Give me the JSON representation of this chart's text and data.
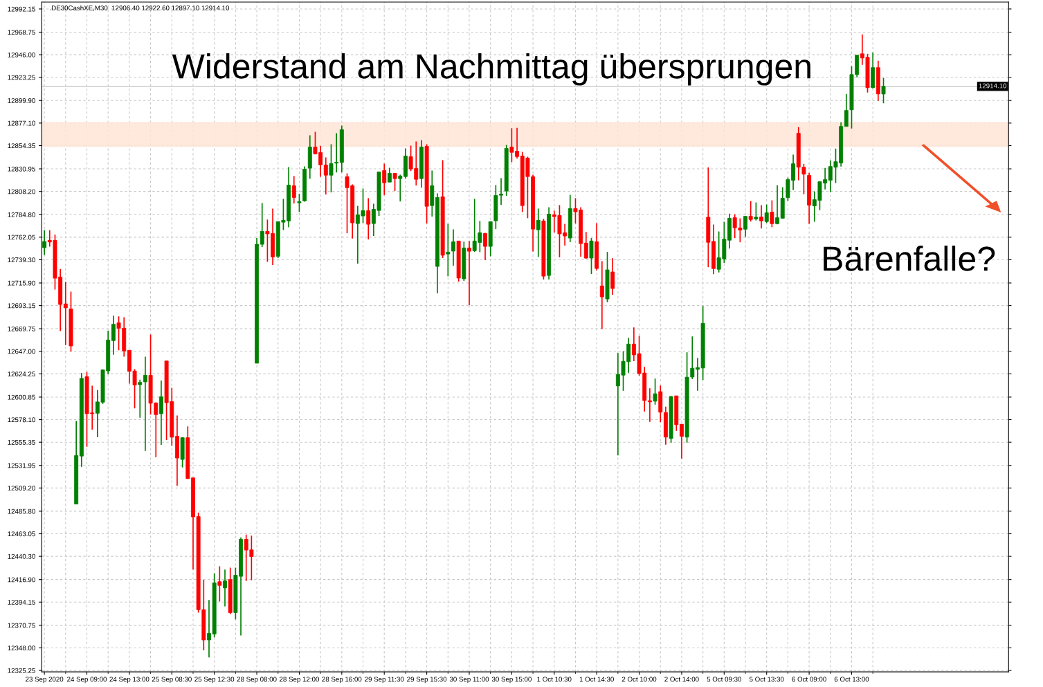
{
  "chart_data": {
    "type": "candlestick",
    "title": ".DE30CashXE,M30  12906.40 12922.60 12897.10 12914.10",
    "annotations": [
      "Widerstand am Nachmittag übersprungen",
      "Bärenfalle?"
    ],
    "categories": [
      "23 Sep 2020",
      null,
      null,
      null,
      null,
      null,
      null,
      null,
      "24 Sep 09:00",
      null,
      null,
      null,
      null,
      null,
      null,
      null,
      "24 Sep 13:00",
      null,
      null,
      null,
      null,
      null,
      null,
      null,
      "25 Sep 08:30",
      null,
      null,
      null,
      null,
      null,
      null,
      null,
      "25 Sep 12:30",
      null,
      null,
      null,
      null,
      null,
      null,
      null,
      "28 Sep 08:00",
      null,
      null,
      null,
      null,
      null,
      null,
      null,
      "28 Sep 12:00",
      null,
      null,
      null,
      null,
      null,
      null,
      null,
      "28 Sep 16:00",
      null,
      null,
      null,
      null,
      null,
      null,
      null,
      "29 Sep 11:30",
      null,
      null,
      null,
      null,
      null,
      null,
      null,
      "29 Sep 15:30",
      null,
      null,
      null,
      null,
      null,
      null,
      null,
      "30 Sep 11:00",
      null,
      null,
      null,
      null,
      null,
      null,
      null,
      "30 Sep 15:00",
      null,
      null,
      null,
      null,
      null,
      null,
      null,
      "1 Oct 10:30",
      null,
      null,
      null,
      null,
      null,
      null,
      null,
      "1 Oct 14:30",
      null,
      null,
      null,
      null,
      null,
      null,
      null,
      "2 Oct 10:00",
      null,
      null,
      null,
      null,
      null,
      null,
      null,
      "2 Oct 14:00",
      null,
      null,
      null,
      null,
      null,
      null,
      null,
      "5 Oct 09:30",
      null,
      null,
      null,
      null,
      null,
      null,
      null,
      "5 Oct 13:30",
      null,
      null,
      null,
      null,
      null,
      null,
      null,
      "6 Oct 09:00",
      null,
      null,
      null,
      null,
      null,
      null,
      null,
      "6 Oct 13:00",
      null,
      null,
      null,
      null,
      null,
      null
    ],
    "colors": [
      "#008000",
      "#ff0000",
      "#ff0000",
      "#ff0000",
      "#ff0000",
      "#ff0000",
      "#008000",
      "#008000",
      "#ff0000",
      "#ff0000",
      "#008000",
      "#008000",
      "#008000",
      "#008000",
      "#ff0000",
      "#ff0000",
      "#ff0000",
      "#ff0000",
      "#008000",
      "#008000",
      "#ff0000",
      "#ff0000",
      "#008000",
      "#ff0000",
      "#ff0000",
      "#ff0000",
      "#008000",
      "#ff0000",
      "#ff0000",
      "#ff0000",
      "#ff0000",
      "#008000",
      "#008000",
      "#ff0000",
      "#008000",
      "#ff0000",
      "#008000",
      "#008000",
      "#ff0000",
      "#ff0000",
      "#008000",
      "#008000",
      "#ff0000",
      "#ff0000",
      "#008000",
      "#008000",
      "#008000",
      "#ff0000",
      "#008000",
      "#008000",
      "#008000",
      "#ff0000",
      "#ff0000",
      "#ff0000",
      "#008000",
      "#008000",
      "#008000",
      "#ff0000",
      "#ff0000",
      "#008000",
      "#008000",
      "#ff0000",
      "#008000",
      "#008000",
      "#ff0000",
      "#008000",
      "#ff0000",
      "#008000",
      "#008000",
      "#ff0000",
      "#ff0000",
      "#008000",
      "#ff0000",
      "#008000",
      "#008000",
      "#ff0000",
      "#008000",
      "#008000",
      "#ff0000",
      "#008000",
      "#ff0000",
      "#008000",
      "#008000",
      "#ff0000",
      "#008000",
      "#008000",
      "#008000",
      "#008000",
      "#ff0000",
      "#ff0000",
      "#ff0000",
      "#ff0000",
      "#ff0000",
      "#008000",
      "#ff0000",
      "#008000",
      "#ff0000",
      "#ff0000",
      "#ff0000",
      "#008000",
      "#ff0000",
      "#ff0000",
      "#ff0000",
      "#008000",
      "#ff0000",
      "#ff0000",
      "#008000",
      "#ff0000",
      "#008000",
      "#008000",
      "#008000",
      "#ff0000",
      "#ff0000",
      "#ff0000",
      "#ff0000",
      "#008000",
      "#ff0000",
      "#ff0000",
      "#008000",
      "#ff0000",
      "#ff0000",
      "#008000",
      "#008000",
      "#008000",
      "#008000",
      "#ff0000",
      "#ff0000",
      "#008000",
      "#008000",
      "#008000",
      "#ff0000",
      "#ff0000",
      "#008000",
      "#ff0000",
      "#008000",
      "#ff0000",
      "#008000",
      "#ff0000",
      "#008000",
      "#008000",
      "#008000",
      "#008000",
      "#ff0000",
      "#ff0000",
      "#ff0000",
      "#008000",
      "#008000",
      "#008000",
      "#008000",
      "#008000",
      "#008000",
      "#008000",
      "#008000",
      "#008000",
      "#ff0000",
      "#ff0000",
      "#008000",
      "#ff0000",
      "#008000"
    ],
    "ohlc": [
      [
        12751.5,
        12769.1,
        12744.1,
        12757.7
      ],
      [
        12758.9,
        12769.1,
        12752.6,
        12757.2
      ],
      [
        12758.9,
        12764.8,
        12709.3,
        12720.7
      ],
      [
        12721.9,
        12730.1,
        12667.5,
        12694.2
      ],
      [
        12694.8,
        12717.0,
        12653.3,
        12690.8
      ],
      [
        12689.7,
        12707.1,
        12646.7,
        12652.4
      ],
      [
        12493.0,
        12576.7,
        12493.0,
        12541.9
      ],
      [
        12541.4,
        12625.3,
        12530.5,
        12619.7
      ],
      [
        12621.4,
        12626.2,
        12550.7,
        12584.1
      ],
      [
        12584.9,
        12612.3,
        12568.1,
        12584.1
      ],
      [
        12584.6,
        12608.0,
        12560.4,
        12596.0
      ],
      [
        12595.7,
        12628.8,
        12594.0,
        12628.2
      ],
      [
        12627.3,
        12667.8,
        12623.9,
        12658.4
      ],
      [
        12657.8,
        12682.9,
        12643.6,
        12674.3
      ],
      [
        12675.7,
        12682.3,
        12648.1,
        12670.3
      ],
      [
        12670.3,
        12681.4,
        12641.6,
        12647.3
      ],
      [
        12648.1,
        12648.1,
        12614.5,
        12626.8
      ],
      [
        12627.1,
        12629.0,
        12589.5,
        12613.1
      ],
      [
        12613.4,
        12618.5,
        12580.1,
        12615.7
      ],
      [
        12616.2,
        12641.6,
        12546.5,
        12622.8
      ],
      [
        12622.8,
        12664.0,
        12583.2,
        12594.6
      ],
      [
        12594.9,
        12595.5,
        12540.2,
        12583.2
      ],
      [
        12584.1,
        12617.6,
        12552.7,
        12601.1
      ],
      [
        12637.3,
        12637.3,
        12557.6,
        12595.2
      ],
      [
        12596.3,
        12610.3,
        12551.9,
        12560.4
      ],
      [
        12561.3,
        12582.4,
        12511.5,
        12539.4
      ],
      [
        12538.0,
        12560.4,
        12529.9,
        12559.9
      ],
      [
        12559.9,
        12571.3,
        12518.6,
        12518.6
      ],
      [
        12519.4,
        12519.4,
        12426.9,
        12480.1
      ],
      [
        12480.4,
        12484.4,
        12383.6,
        12386.5
      ],
      [
        12386.5,
        12416.7,
        12345.5,
        12356.0
      ],
      [
        12356.0,
        12396.2,
        12338.4,
        12362.6
      ],
      [
        12362.0,
        12423.2,
        12358.6,
        12413.5
      ],
      [
        12414.7,
        12430.3,
        12394.7,
        12411.0
      ],
      [
        12408.4,
        12426.9,
        12389.9,
        12415.5
      ],
      [
        12416.9,
        12428.9,
        12381.9,
        12383.6
      ],
      [
        12383.6,
        12428.9,
        12376.8,
        12421.2
      ],
      [
        12420.1,
        12459.4,
        12360.6,
        12457.4
      ],
      [
        12457.4,
        12462.2,
        12415.5,
        12446.6
      ],
      [
        12446.8,
        12461.1,
        12416.1,
        12440.0
      ],
      [
        12635.0,
        12761.2,
        12635.0,
        12754.9
      ],
      [
        12754.9,
        12796.5,
        12752.1,
        12767.9
      ],
      [
        12767.9,
        12779.8,
        12737.2,
        12765.4
      ],
      [
        12765.8,
        12790.9,
        12734.0,
        12742.1
      ],
      [
        12742.8,
        12777.7,
        12741.0,
        12777.7
      ],
      [
        12777.2,
        12800.7,
        12769.3,
        12779.1
      ],
      [
        12778.4,
        12832.7,
        12772.1,
        12814.6
      ],
      [
        12813.9,
        12823.7,
        12796.0,
        12802.1
      ],
      [
        12796.7,
        12805.8,
        12787.4,
        12797.9
      ],
      [
        12798.6,
        12833.4,
        12797.9,
        12830.6
      ],
      [
        12831.6,
        12864.8,
        12820.9,
        12852.9
      ],
      [
        12852.9,
        12868.3,
        12845.5,
        12846.2
      ],
      [
        12847.4,
        12854.1,
        12823.0,
        12835.0
      ],
      [
        12834.8,
        12842.5,
        12805.1,
        12824.6
      ],
      [
        12824.6,
        12855.7,
        12807.2,
        12836.2
      ],
      [
        12836.7,
        12866.9,
        12827.4,
        12837.6
      ],
      [
        12837.4,
        12874.5,
        12827.4,
        12870.4
      ],
      [
        12823.0,
        12826.4,
        12766.0,
        12812.0
      ],
      [
        12813.9,
        12815.3,
        12760.7,
        12776.5
      ],
      [
        12775.8,
        12793.7,
        12735.4,
        12784.6
      ],
      [
        12783.5,
        12811.1,
        12776.3,
        12788.8
      ],
      [
        12788.8,
        12801.4,
        12759.8,
        12775.1
      ],
      [
        12775.8,
        12795.8,
        12763.3,
        12790.2
      ],
      [
        12789.0,
        12827.8,
        12783.5,
        12827.8
      ],
      [
        12829.2,
        12836.2,
        12804.4,
        12816.9
      ],
      [
        12817.6,
        12832.0,
        12817.6,
        12826.4
      ],
      [
        12826.4,
        12826.4,
        12808.6,
        12821.1
      ],
      [
        12821.1,
        12825.1,
        12798.1,
        12823.7
      ],
      [
        12823.2,
        12851.5,
        12821.1,
        12843.9
      ],
      [
        12843.2,
        12854.3,
        12828.8,
        12830.9
      ],
      [
        12831.3,
        12858.5,
        12814.1,
        12820.4
      ],
      [
        12821.1,
        12859.9,
        12812.0,
        12852.9
      ],
      [
        12853.6,
        12855.7,
        12775.8,
        12793.2
      ],
      [
        12793.9,
        12829.2,
        12782.8,
        12813.9
      ],
      [
        12732.6,
        12806.2,
        12705.4,
        12802.1
      ],
      [
        12802.8,
        12839.7,
        12741.0,
        12743.8
      ],
      [
        12745.1,
        12775.6,
        12722.6,
        12747.0
      ],
      [
        12748.0,
        12770.0,
        12733.3,
        12757.4
      ],
      [
        12758.2,
        12758.2,
        12717.3,
        12720.8
      ],
      [
        12720.1,
        12757.5,
        12718.0,
        12751.2
      ],
      [
        12751.2,
        12758.2,
        12693.6,
        12747.9
      ],
      [
        12748.4,
        12800.7,
        12747.2,
        12758.2
      ],
      [
        12756.8,
        12778.4,
        12747.0,
        12766.5
      ],
      [
        12765.8,
        12766.5,
        12738.9,
        12752.8
      ],
      [
        12752.8,
        12777.7,
        12742.8,
        12777.7
      ],
      [
        12778.6,
        12814.6,
        12770.2,
        12804.1
      ],
      [
        12804.4,
        12821.6,
        12794.6,
        12805.5
      ],
      [
        12808.6,
        12855.0,
        12803.7,
        12851.5
      ],
      [
        12852.9,
        12872.0,
        12837.8,
        12847.6
      ],
      [
        12848.7,
        12872.4,
        12841.3,
        12843.4
      ],
      [
        12843.9,
        12848.1,
        12787.4,
        12793.9
      ],
      [
        12841.8,
        12843.2,
        12781.2,
        12823.2
      ],
      [
        12823.0,
        12825.1,
        12747.7,
        12770.2
      ],
      [
        12769.5,
        12790.9,
        12742.1,
        12779.1
      ],
      [
        12778.4,
        12780.5,
        12719.4,
        12722.8
      ],
      [
        12723.5,
        12792.3,
        12719.4,
        12785.3
      ],
      [
        12784.6,
        12788.8,
        12766.7,
        12782.8
      ],
      [
        12783.9,
        12794.4,
        12741.7,
        12765.4
      ],
      [
        12766.5,
        12775.6,
        12753.5,
        12763.3
      ],
      [
        12761.2,
        12804.8,
        12757.0,
        12790.9
      ],
      [
        12790.9,
        12801.4,
        12775.8,
        12787.7
      ],
      [
        12789.5,
        12792.3,
        12742.4,
        12755.6
      ],
      [
        12756.1,
        12767.4,
        12740.3,
        12741.0
      ],
      [
        12741.0,
        12761.2,
        12724.9,
        12758.2
      ],
      [
        12757.5,
        12776.3,
        12728.4,
        12730.5
      ],
      [
        12712.9,
        12737.9,
        12669.4,
        12701.9
      ],
      [
        12699.8,
        12747.2,
        12696.4,
        12729.1
      ],
      [
        12727.0,
        12740.9,
        12704.0,
        12710.3
      ],
      [
        12612.1,
        12645.3,
        12542.1,
        12623.7
      ],
      [
        12623.0,
        12647.1,
        12607.2,
        12636.9
      ],
      [
        12636.5,
        12660.6,
        12625.3,
        12654.3
      ],
      [
        12654.3,
        12671.1,
        12637.1,
        12643.4
      ],
      [
        12644.6,
        12662.7,
        12622.5,
        12624.6
      ],
      [
        12625.1,
        12631.3,
        12586.3,
        12597.4
      ],
      [
        12597.2,
        12609.7,
        12575.8,
        12596.0
      ],
      [
        12596.7,
        12619.5,
        12593.2,
        12604.2
      ],
      [
        12606.3,
        12612.5,
        12575.6,
        12585.6
      ],
      [
        12585.3,
        12591.2,
        12552.8,
        12560.5
      ],
      [
        12559.1,
        12602.1,
        12554.9,
        12601.4
      ],
      [
        12602.1,
        12602.1,
        12566.8,
        12573.0
      ],
      [
        12573.5,
        12573.5,
        12538.9,
        12561.2
      ],
      [
        12560.5,
        12646.0,
        12554.9,
        12620.9
      ],
      [
        12621.1,
        12662.0,
        12619.0,
        12629.9
      ],
      [
        12628.8,
        12640.4,
        12607.2,
        12630.6
      ],
      [
        12630.2,
        12692.7,
        12618.1,
        12675.2
      ],
      [
        12782.2,
        12832.4,
        12731.8,
        12756.9
      ],
      [
        12757.8,
        12774.8,
        12724.8,
        12730.4
      ],
      [
        12729.7,
        12767.8,
        12726.5,
        12741.3
      ],
      [
        12740.2,
        12777.6,
        12736.0,
        12760.1
      ],
      [
        12759.0,
        12785.9,
        12750.6,
        12781.1
      ],
      [
        12781.7,
        12785.2,
        12761.1,
        12771.5
      ],
      [
        12771.3,
        12781.1,
        12756.9,
        12769.2
      ],
      [
        12770.1,
        12783.1,
        12762.5,
        12783.1
      ],
      [
        12783.1,
        12798.5,
        12777.8,
        12779.9
      ],
      [
        12780.4,
        12797.1,
        12778.9,
        12782.2
      ],
      [
        12782.4,
        12794.3,
        12770.8,
        12778.5
      ],
      [
        12777.8,
        12795.0,
        12776.4,
        12786.6
      ],
      [
        12787.3,
        12799.2,
        12772.2,
        12775.7
      ],
      [
        12775.7,
        12814.5,
        12775.0,
        12781.7
      ],
      [
        12781.1,
        12812.4,
        12781.1,
        12801.3
      ],
      [
        12801.9,
        12822.2,
        12798.5,
        12820.1
      ],
      [
        12819.4,
        12845.2,
        12809.6,
        12836.1
      ],
      [
        12866.8,
        12873.0,
        12819.4,
        12832.6
      ],
      [
        12832.6,
        12836.1,
        12805.4,
        12825.6
      ],
      [
        12824.3,
        12827.0,
        12775.5,
        12794.3
      ],
      [
        12793.6,
        12808.2,
        12777.6,
        12799.9
      ],
      [
        12799.2,
        12818.0,
        12789.4,
        12818.0
      ],
      [
        12816.6,
        12831.9,
        12810.3,
        12820.1
      ],
      [
        12819.4,
        12839.6,
        12807.5,
        12833.3
      ],
      [
        12832.6,
        12851.4,
        12816.6,
        12838.2
      ],
      [
        12836.8,
        12877.9,
        12833.3,
        12873.7
      ],
      [
        12873.7,
        12906.5,
        12873.7,
        12889.8
      ],
      [
        12890.5,
        12934.4,
        12871.7,
        12926.0
      ],
      [
        12926.0,
        12945.5,
        12923.2,
        12945.5
      ],
      [
        12946.9,
        12966.4,
        12935.8,
        12942.7
      ],
      [
        12943.4,
        12946.9,
        12907.9,
        12912.8
      ],
      [
        12912.8,
        12948.3,
        12912.1,
        12933.0
      ],
      [
        12933.0,
        12939.9,
        12899.5,
        12906.5
      ],
      [
        12906.4,
        12922.6,
        12897.1,
        12914.1
      ]
    ],
    "ylim": [
      12323.8,
      12999.1
    ],
    "yticks": [
      {
        "value": 12992.15,
        "label": "12992.15"
      },
      {
        "value": 12968.75,
        "label": "12968.75"
      },
      {
        "value": 12946.0,
        "label": "12946.00"
      },
      {
        "value": 12923.25,
        "label": "12923.25"
      },
      {
        "value": 12899.9,
        "label": "12899.90"
      },
      {
        "value": 12877.1,
        "label": "12877.10"
      },
      {
        "value": 12854.35,
        "label": "12854.35"
      },
      {
        "value": 12830.95,
        "label": "12830.95"
      },
      {
        "value": 12808.2,
        "label": "12808.20"
      },
      {
        "value": 12784.8,
        "label": "12784.80"
      },
      {
        "value": 12762.05,
        "label": "12762.05"
      },
      {
        "value": 12739.3,
        "label": "12739.30"
      },
      {
        "value": 12715.9,
        "label": "12715.90"
      },
      {
        "value": 12693.15,
        "label": "12693.15"
      },
      {
        "value": 12669.75,
        "label": "12669.75"
      },
      {
        "value": 12647.0,
        "label": "12647.00"
      },
      {
        "value": 12624.25,
        "label": "12624.25"
      },
      {
        "value": 12600.85,
        "label": "12600.85"
      },
      {
        "value": 12578.1,
        "label": "12578.10"
      },
      {
        "value": 12555.35,
        "label": "12555.35"
      },
      {
        "value": 12531.95,
        "label": "12531.95"
      },
      {
        "value": 12509.2,
        "label": "12509.20"
      },
      {
        "value": 12485.8,
        "label": "12485.80"
      },
      {
        "value": 12463.05,
        "label": "12463.05"
      },
      {
        "value": 12440.3,
        "label": "12440.30"
      },
      {
        "value": 12416.9,
        "label": "12416.90"
      },
      {
        "value": 12394.15,
        "label": "12394.15"
      },
      {
        "value": 12370.75,
        "label": "12370.75"
      },
      {
        "value": 12348.0,
        "label": "12348.00"
      },
      {
        "value": 12325.25,
        "label": "12325.25"
      }
    ],
    "ref_lines": [
      {
        "axis": "y",
        "value": 12914.1,
        "label": "12914.10",
        "color": "#c0c0c0",
        "line_style": "solid"
      }
    ],
    "bands": [
      {
        "axis": "y",
        "from": 12853.0,
        "to": 12878.0,
        "color": "#ffe4d6"
      }
    ],
    "grid": true,
    "legend": false
  }
}
